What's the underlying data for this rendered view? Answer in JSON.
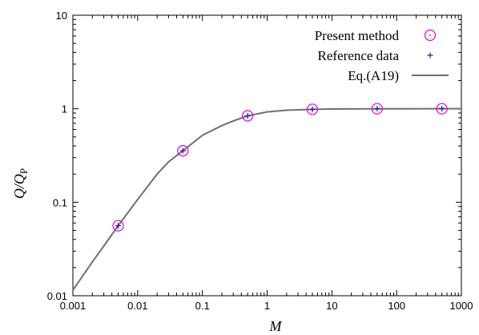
{
  "chart_data": {
    "type": "scatter",
    "xlabel": "M",
    "ylabel": "Q/Q",
    "ylabel_subscript": "P",
    "xscale": "log",
    "yscale": "log",
    "xlim": [
      0.001,
      1000
    ],
    "ylim": [
      0.01,
      10
    ],
    "x_ticks": [
      0.001,
      0.01,
      0.1,
      1,
      10,
      100,
      1000
    ],
    "x_tick_labels": [
      "0.001",
      "0.01",
      "0.1",
      "1",
      "10",
      "100",
      "1000"
    ],
    "y_ticks": [
      0.01,
      0.1,
      1,
      10
    ],
    "y_tick_labels": [
      "0.01",
      "0.1",
      "1",
      "10"
    ],
    "grid": false,
    "legend_position": "top-right",
    "series": [
      {
        "name": "Present method",
        "marker": "circle-dot",
        "color": "#e000e0",
        "x": [
          0.005,
          0.05,
          0.5,
          5,
          50,
          500
        ],
        "y": [
          0.056,
          0.355,
          0.84,
          0.985,
          1.0,
          1.0
        ]
      },
      {
        "name": "Reference data",
        "marker": "plus",
        "color": "#1a1aa0",
        "x": [
          0.005,
          0.05,
          0.5,
          5,
          50,
          500
        ],
        "y": [
          0.056,
          0.355,
          0.84,
          0.985,
          1.0,
          1.0
        ]
      },
      {
        "name": "Eq.(A19)",
        "marker": "line",
        "color": "#707070",
        "x": [
          0.001,
          0.002,
          0.003,
          0.005,
          0.01,
          0.02,
          0.03,
          0.05,
          0.1,
          0.2,
          0.3,
          0.5,
          1,
          2,
          5,
          10,
          50,
          100,
          500,
          1000
        ],
        "y": [
          0.0115,
          0.023,
          0.034,
          0.056,
          0.107,
          0.2,
          0.27,
          0.355,
          0.52,
          0.66,
          0.74,
          0.84,
          0.925,
          0.965,
          0.985,
          0.993,
          0.998,
          0.999,
          1.0,
          1.0
        ]
      }
    ]
  }
}
